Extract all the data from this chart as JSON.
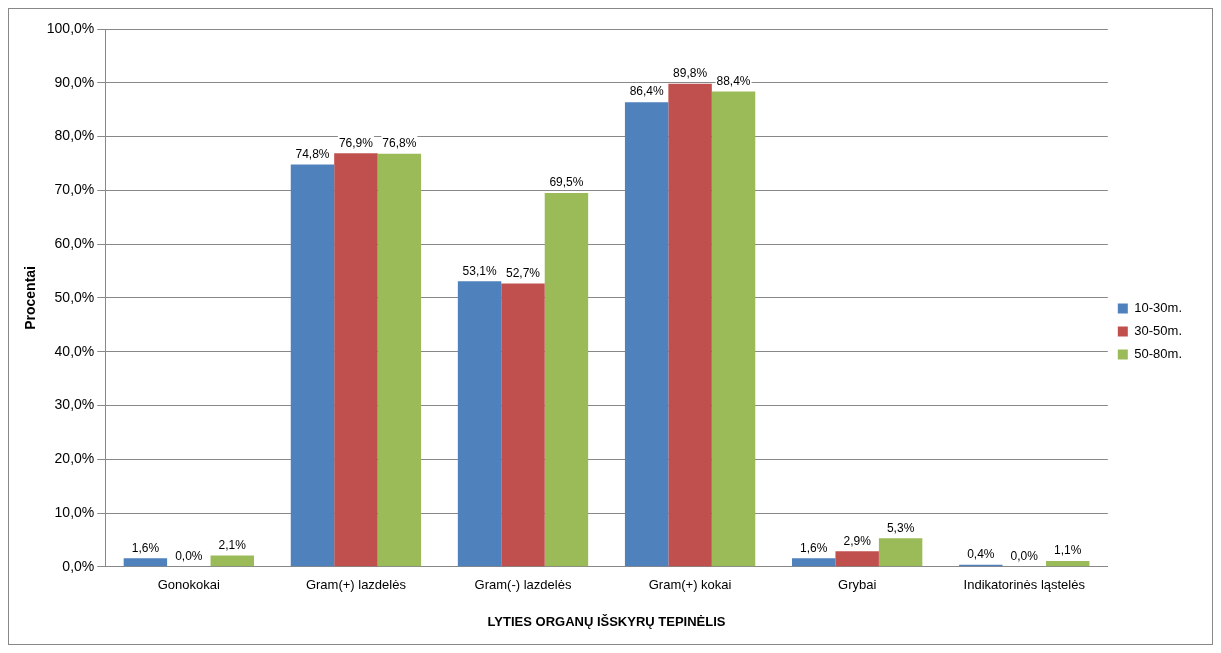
{
  "chart_data": {
    "type": "bar",
    "xlabel": "LYTIES ORGANŲ IŠSKYRŲ TEPINĖLIS",
    "ylabel": "Procentai",
    "categories": [
      "Gonokokai",
      "Gram(+) lazdelės",
      "Gram(-) lazdelės",
      "Gram(+) kokai",
      "Grybai",
      "Indikatorinės ląstelės"
    ],
    "series": [
      {
        "name": "10-30m.",
        "color": "#4f81bd",
        "values": [
          1.6,
          74.8,
          53.1,
          86.4,
          1.6,
          0.4
        ],
        "value_labels": [
          "1,6%",
          "74,8%",
          "53,1%",
          "86,4%",
          "1,6%",
          "0,4%"
        ]
      },
      {
        "name": "30-50m.",
        "color": "#c0504d",
        "values": [
          0.0,
          76.9,
          52.7,
          89.8,
          2.9,
          0.0
        ],
        "value_labels": [
          "0,0%",
          "76,9%",
          "52,7%",
          "89,8%",
          "2,9%",
          "0,0%"
        ]
      },
      {
        "name": "50-80m.",
        "color": "#9bbb59",
        "values": [
          2.1,
          76.8,
          69.5,
          88.4,
          5.3,
          1.1
        ],
        "value_labels": [
          "2,1%",
          "76,8%",
          "69,5%",
          "88,4%",
          "5,3%",
          "1,1%"
        ]
      }
    ],
    "ylim": [
      0,
      100
    ],
    "yticks": [
      {
        "value": 0,
        "label": "0,0%"
      },
      {
        "value": 10,
        "label": "10,0%"
      },
      {
        "value": 20,
        "label": "20,0%"
      },
      {
        "value": 30,
        "label": "30,0%"
      },
      {
        "value": 40,
        "label": "40,0%"
      },
      {
        "value": 50,
        "label": "50,0%"
      },
      {
        "value": 60,
        "label": "60,0%"
      },
      {
        "value": 70,
        "label": "70,0%"
      },
      {
        "value": 80,
        "label": "80,0%"
      },
      {
        "value": 90,
        "label": "90,0%"
      },
      {
        "value": 100,
        "label": "100,0%"
      }
    ],
    "grid": "y",
    "legend": "right"
  }
}
